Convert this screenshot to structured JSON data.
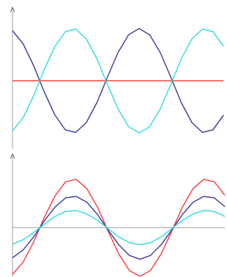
{
  "chart_data": [
    {
      "type": "line",
      "x": [
        0,
        0.5,
        1,
        1.5,
        2,
        2.5,
        3,
        3.5,
        4,
        4.5,
        5,
        5.5,
        6,
        6.5,
        7,
        7.5,
        8,
        8.5,
        9,
        9.5,
        10
      ],
      "xlim": [
        0,
        10
      ],
      "ylim": [
        -1.3,
        1.3
      ],
      "grid": false,
      "series": [
        {
          "color": "#ff3b3b",
          "values": [
            0,
            0,
            0,
            0,
            0,
            0,
            0,
            0,
            0,
            0,
            0,
            0,
            0,
            0,
            0,
            0,
            0,
            0,
            0,
            0,
            0
          ]
        },
        {
          "color": "#3c3c9c",
          "values": [
            0.96,
            0.71,
            0.29,
            -0.21,
            -0.65,
            -0.94,
            -0.99,
            -0.8,
            -0.42,
            0.07,
            0.54,
            0.88,
            1.0,
            0.88,
            0.54,
            0.07,
            -0.42,
            -0.8,
            -0.99,
            -0.94,
            -0.66
          ]
        },
        {
          "color": "#33dddd",
          "values": [
            -0.96,
            -0.71,
            -0.29,
            0.21,
            0.65,
            0.94,
            0.99,
            0.8,
            0.42,
            -0.07,
            -0.54,
            -0.88,
            -1.0,
            -0.88,
            -0.54,
            -0.07,
            0.42,
            0.8,
            0.99,
            0.94,
            0.66
          ]
        }
      ]
    },
    {
      "type": "line",
      "x": [
        0,
        0.5,
        1,
        1.5,
        2,
        2.5,
        3,
        3.5,
        4,
        4.5,
        5,
        5.5,
        6,
        6.5,
        7,
        7.5,
        8,
        8.5,
        9,
        9.5,
        10
      ],
      "xlim": [
        0,
        10
      ],
      "ylim": [
        -1.01,
        1.4
      ],
      "grid": false,
      "series": [
        {
          "color": "#ff3b3b",
          "values": [
            -0.96,
            -0.71,
            -0.29,
            0.21,
            0.65,
            0.94,
            0.99,
            0.8,
            0.42,
            -0.07,
            -0.54,
            -0.88,
            -1.0,
            -0.88,
            -0.54,
            -0.07,
            0.42,
            0.8,
            0.99,
            0.94,
            0.66
          ]
        },
        {
          "color": "#3c3c9c",
          "values": [
            -0.62,
            -0.46,
            -0.19,
            0.14,
            0.42,
            0.61,
            0.64,
            0.52,
            0.27,
            -0.05,
            -0.35,
            -0.57,
            -0.65,
            -0.57,
            -0.35,
            -0.05,
            0.27,
            0.52,
            0.64,
            0.61,
            0.43
          ]
        },
        {
          "color": "#33dddd",
          "values": [
            -0.34,
            -0.25,
            -0.1,
            0.07,
            0.23,
            0.33,
            0.35,
            0.28,
            0.15,
            -0.02,
            -0.19,
            -0.31,
            -0.35,
            -0.31,
            -0.19,
            -0.02,
            0.15,
            0.28,
            0.35,
            0.33,
            0.23
          ]
        }
      ]
    }
  ]
}
